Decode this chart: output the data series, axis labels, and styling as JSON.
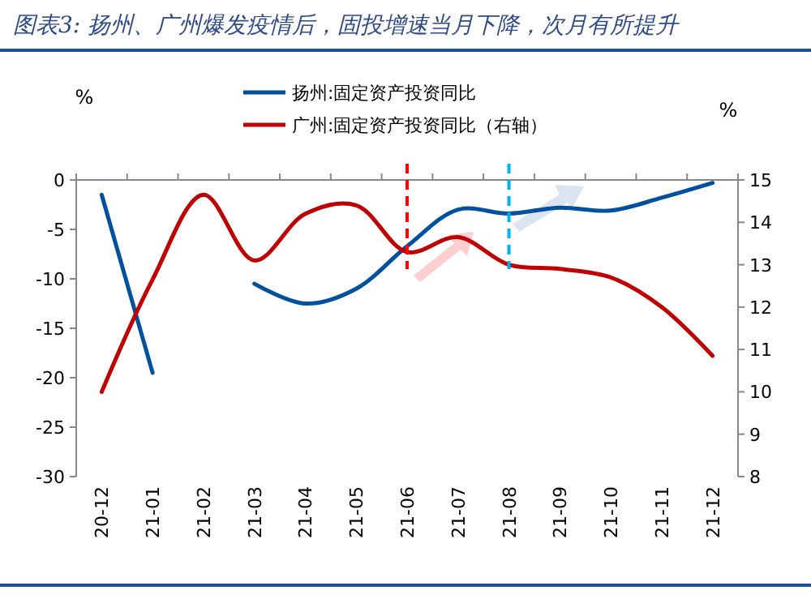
{
  "chart_data": {
    "type": "line",
    "title": "图表3: 扬州、广州爆发疫情后，固投增速当月下降，次月有所提升",
    "ylabel": "%",
    "y2label": "%",
    "categories": [
      "20-12",
      "21-01",
      "21-02",
      "21-03",
      "21-04",
      "21-05",
      "21-06",
      "21-07",
      "21-08",
      "21-09",
      "21-10",
      "21-11",
      "21-12"
    ],
    "series": [
      {
        "name": "扬州:固定资产投资同比",
        "color": "#0050a0",
        "values": [
          -1.5,
          -19.5,
          null,
          -10.5,
          -12.5,
          -11,
          -6.7,
          -3,
          -3.4,
          -2.8,
          -3.1,
          -1.8,
          -0.3
        ]
      },
      {
        "name": "广州:固定资产投资同比（右轴）",
        "color": "#c00000",
        "axis": "y2",
        "values": [
          10.0,
          12.65,
          14.65,
          13.1,
          14.2,
          14.4,
          13.3,
          13.65,
          13.0,
          12.9,
          12.7,
          12.0,
          10.85
        ]
      }
    ],
    "ylim": [
      -30,
      0
    ],
    "yticks": [
      -30,
      -25,
      -20,
      -15,
      -10,
      -5,
      0
    ],
    "y2lim": [
      8,
      15
    ],
    "y2ticks": [
      8,
      9,
      10,
      11,
      12,
      13,
      14,
      15
    ],
    "ref_lines": [
      {
        "axis": "x",
        "value": "21-06",
        "color": "#ff0000",
        "line_style": "dashed"
      },
      {
        "axis": "x",
        "value": "21-08",
        "color": "#00b0f0",
        "line_style": "dashed"
      }
    ],
    "legend": "top",
    "line_style": "solid"
  }
}
